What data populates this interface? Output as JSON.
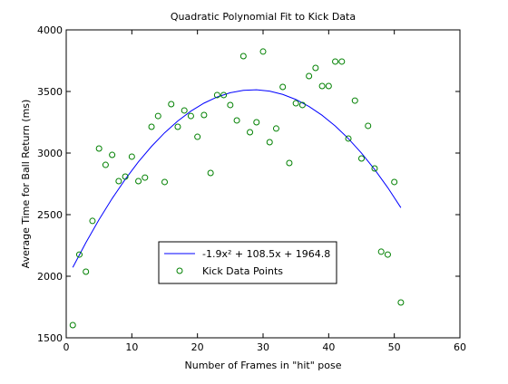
{
  "chart_data": {
    "type": "scatter-fit",
    "title": "Quadratic Polynomial Fit to Kick Data",
    "x_label": "Number of Frames in \"hit\" pose",
    "y_label": "Average Time for Ball Return (ms)",
    "xlim": [
      0,
      60
    ],
    "xticks": [
      0,
      10,
      20,
      30,
      40,
      50,
      60
    ],
    "ylim": [
      1500,
      4000
    ],
    "yticks": [
      1500,
      2000,
      2500,
      3000,
      3500,
      4000
    ],
    "legend_position": "lower-center",
    "series": [
      {
        "name": "-1.9x² + 108.5x + 1964.8",
        "kind": "line",
        "color": "#0000ff",
        "x": [
          1,
          3,
          5,
          7,
          9,
          11,
          13,
          15,
          17,
          19,
          21,
          23,
          25,
          27,
          29,
          31,
          33,
          35,
          37,
          39,
          41,
          43,
          45,
          47,
          49,
          51
        ],
        "values": [
          2071.4,
          2273.2,
          2459.8,
          2631.2,
          2787.4,
          2928.4,
          3054.2,
          3164.8,
          3260.2,
          3340.4,
          3405.4,
          3455.2,
          3489.8,
          3509.2,
          3513.4,
          3502.4,
          3476.2,
          3434.8,
          3378.2,
          3306.4,
          3219.4,
          3117.2,
          2999.8,
          2867.2,
          2719.4,
          2556.4
        ]
      },
      {
        "name": "Kick Data Points",
        "kind": "points",
        "color": "#008000",
        "x": [
          1,
          2,
          3,
          4,
          5,
          6,
          7,
          8,
          9,
          10,
          11,
          12,
          13,
          14,
          15,
          16,
          17,
          18,
          19,
          20,
          21,
          22,
          23,
          24,
          25,
          26,
          27,
          28,
          29,
          30,
          31,
          32,
          33,
          34,
          35,
          36,
          37,
          38,
          39,
          40,
          41,
          42,
          43,
          44,
          45,
          46,
          47,
          48,
          49,
          50,
          51
        ],
        "values": [
          1603,
          2176,
          2037,
          2449,
          3037,
          2904,
          2985,
          2772,
          2809,
          2971,
          2772,
          2801,
          3213,
          3301,
          2765,
          3397,
          3213,
          3346,
          3301,
          3132,
          3309,
          2838,
          3471,
          3471,
          3390,
          3265,
          3787,
          3169,
          3250,
          3824,
          3088,
          3199,
          3537,
          2919,
          3404,
          3390,
          3625,
          3691,
          3544,
          3544,
          3743,
          3743,
          3118,
          3426,
          2956,
          3221,
          2875,
          2199,
          2176,
          2765,
          1787
        ]
      }
    ]
  }
}
